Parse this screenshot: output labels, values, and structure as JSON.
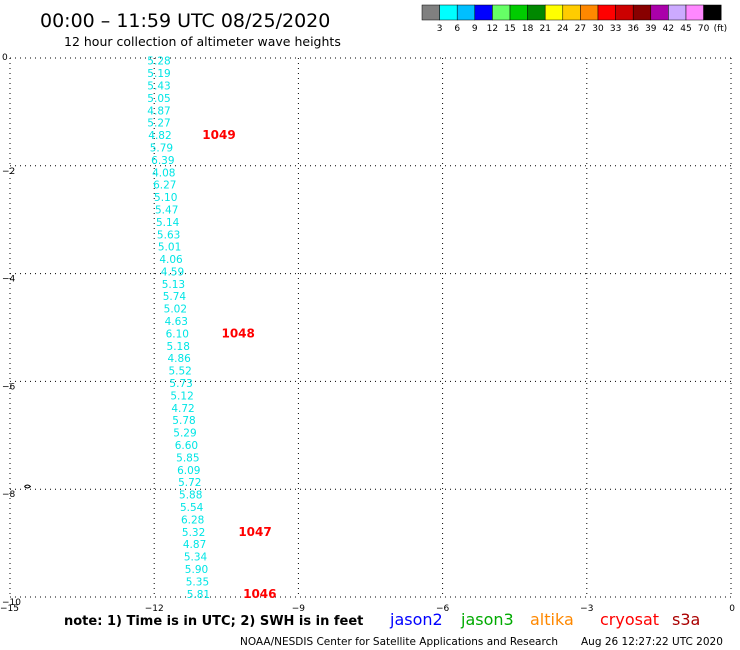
{
  "header": {
    "title": "00:00 – 11:59 UTC 08/25/2020",
    "subtitle": "12 hour collection of altimeter wave heights"
  },
  "color_scale": {
    "colors": [
      "#808080",
      "#00ffff",
      "#00bfff",
      "#0000ff",
      "#66ff66",
      "#00cc00",
      "#008800",
      "#ffff00",
      "#ffcc00",
      "#ff8800",
      "#ff0000",
      "#cc0000",
      "#880000",
      "#aa00aa",
      "#ccaaff",
      "#ff88ff",
      "#000000"
    ],
    "labels": [
      "3",
      "6",
      "9",
      "12",
      "15",
      "18",
      "21",
      "24",
      "27",
      "30",
      "33",
      "36",
      "39",
      "42",
      "45",
      "70"
    ],
    "unit": "(ft)"
  },
  "chart_data": {
    "type": "scatter",
    "xlim": [
      -15,
      0
    ],
    "ylim": [
      -10,
      0
    ],
    "x_ticks": [
      -15,
      -12,
      -9,
      -6,
      -3,
      0
    ],
    "y_ticks": [
      0,
      -2,
      -4,
      -6,
      -8,
      -10
    ],
    "x_tick_labels": [
      "−15",
      "−12",
      "−9",
      "−6",
      "−3",
      "0"
    ],
    "y_tick_labels": [
      "0",
      "−2",
      "−4",
      "−6",
      "−8",
      "−10"
    ],
    "grid": true,
    "points": [
      {
        "x": -11.9,
        "y": -0.05,
        "v": "5.28"
      },
      {
        "x": -11.9,
        "y": -0.28,
        "v": "5.19"
      },
      {
        "x": -11.9,
        "y": -0.51,
        "v": "5.43"
      },
      {
        "x": -11.9,
        "y": -0.74,
        "v": "5.05"
      },
      {
        "x": -11.9,
        "y": -0.97,
        "v": "4.87"
      },
      {
        "x": -11.9,
        "y": -1.2,
        "v": "5.27"
      },
      {
        "x": -11.88,
        "y": -1.43,
        "v": "4.82"
      },
      {
        "x": -11.85,
        "y": -1.66,
        "v": "5.79"
      },
      {
        "x": -11.82,
        "y": -1.89,
        "v": "6.39"
      },
      {
        "x": -11.8,
        "y": -2.12,
        "v": "4.08"
      },
      {
        "x": -11.78,
        "y": -2.35,
        "v": "6.27"
      },
      {
        "x": -11.76,
        "y": -2.58,
        "v": "5.10"
      },
      {
        "x": -11.74,
        "y": -2.81,
        "v": "5.47"
      },
      {
        "x": -11.72,
        "y": -3.04,
        "v": "5.14"
      },
      {
        "x": -11.7,
        "y": -3.27,
        "v": "5.63"
      },
      {
        "x": -11.68,
        "y": -3.5,
        "v": "5.01"
      },
      {
        "x": -11.65,
        "y": -3.73,
        "v": "4.06"
      },
      {
        "x": -11.62,
        "y": -3.96,
        "v": "4.59"
      },
      {
        "x": -11.6,
        "y": -4.19,
        "v": "5.13"
      },
      {
        "x": -11.58,
        "y": -4.42,
        "v": "5.74"
      },
      {
        "x": -11.56,
        "y": -4.65,
        "v": "5.02"
      },
      {
        "x": -11.54,
        "y": -4.88,
        "v": "4.63"
      },
      {
        "x": -11.52,
        "y": -5.11,
        "v": "6.10"
      },
      {
        "x": -11.5,
        "y": -5.34,
        "v": "5.18"
      },
      {
        "x": -11.48,
        "y": -5.57,
        "v": "4.86"
      },
      {
        "x": -11.46,
        "y": -5.8,
        "v": "5.52"
      },
      {
        "x": -11.44,
        "y": -6.03,
        "v": "5.73"
      },
      {
        "x": -11.42,
        "y": -6.26,
        "v": "5.12"
      },
      {
        "x": -11.4,
        "y": -6.49,
        "v": "4.72"
      },
      {
        "x": -11.38,
        "y": -6.72,
        "v": "5.78"
      },
      {
        "x": -11.36,
        "y": -6.95,
        "v": "5.29"
      },
      {
        "x": -11.33,
        "y": -7.18,
        "v": "6.60"
      },
      {
        "x": -11.3,
        "y": -7.41,
        "v": "5.85"
      },
      {
        "x": -11.28,
        "y": -7.64,
        "v": "6.09"
      },
      {
        "x": -11.26,
        "y": -7.87,
        "v": "5.72"
      },
      {
        "x": -11.24,
        "y": -8.1,
        "v": "5.88"
      },
      {
        "x": -11.22,
        "y": -8.33,
        "v": "5.54"
      },
      {
        "x": -11.2,
        "y": -8.56,
        "v": "6.28"
      },
      {
        "x": -11.18,
        "y": -8.79,
        "v": "5.32"
      },
      {
        "x": -11.16,
        "y": -9.02,
        "v": "4.87"
      },
      {
        "x": -11.14,
        "y": -9.25,
        "v": "5.34"
      },
      {
        "x": -11.12,
        "y": -9.48,
        "v": "5.90"
      },
      {
        "x": -11.1,
        "y": -9.71,
        "v": "5.35"
      },
      {
        "x": -11.08,
        "y": -9.94,
        "v": "5.81"
      }
    ],
    "time_labels": [
      {
        "x": -11.0,
        "y": -1.43,
        "text": "1049"
      },
      {
        "x": -10.6,
        "y": -5.11,
        "text": "1048"
      },
      {
        "x": -10.25,
        "y": -8.79,
        "text": "1047"
      },
      {
        "x": -10.15,
        "y": -9.94,
        "text": "1046"
      }
    ],
    "point_color": "#00e5e5",
    "label_color": "#ff0000"
  },
  "footer": {
    "note": "note:  1) Time is in UTC;  2) SWH is in feet",
    "satellites": [
      {
        "name": "jason2",
        "color": "#0000ff"
      },
      {
        "name": "jason3",
        "color": "#00aa00"
      },
      {
        "name": "altika",
        "color": "#ff8800"
      },
      {
        "name": "cryosat",
        "color": "#ff0000"
      },
      {
        "name": "s3a",
        "color": "#aa0000"
      }
    ],
    "credit": "NOAA/NESDIS Center for Satellite Applications and Research",
    "timestamp": "Aug 26 12:27:22 UTC 2020"
  }
}
